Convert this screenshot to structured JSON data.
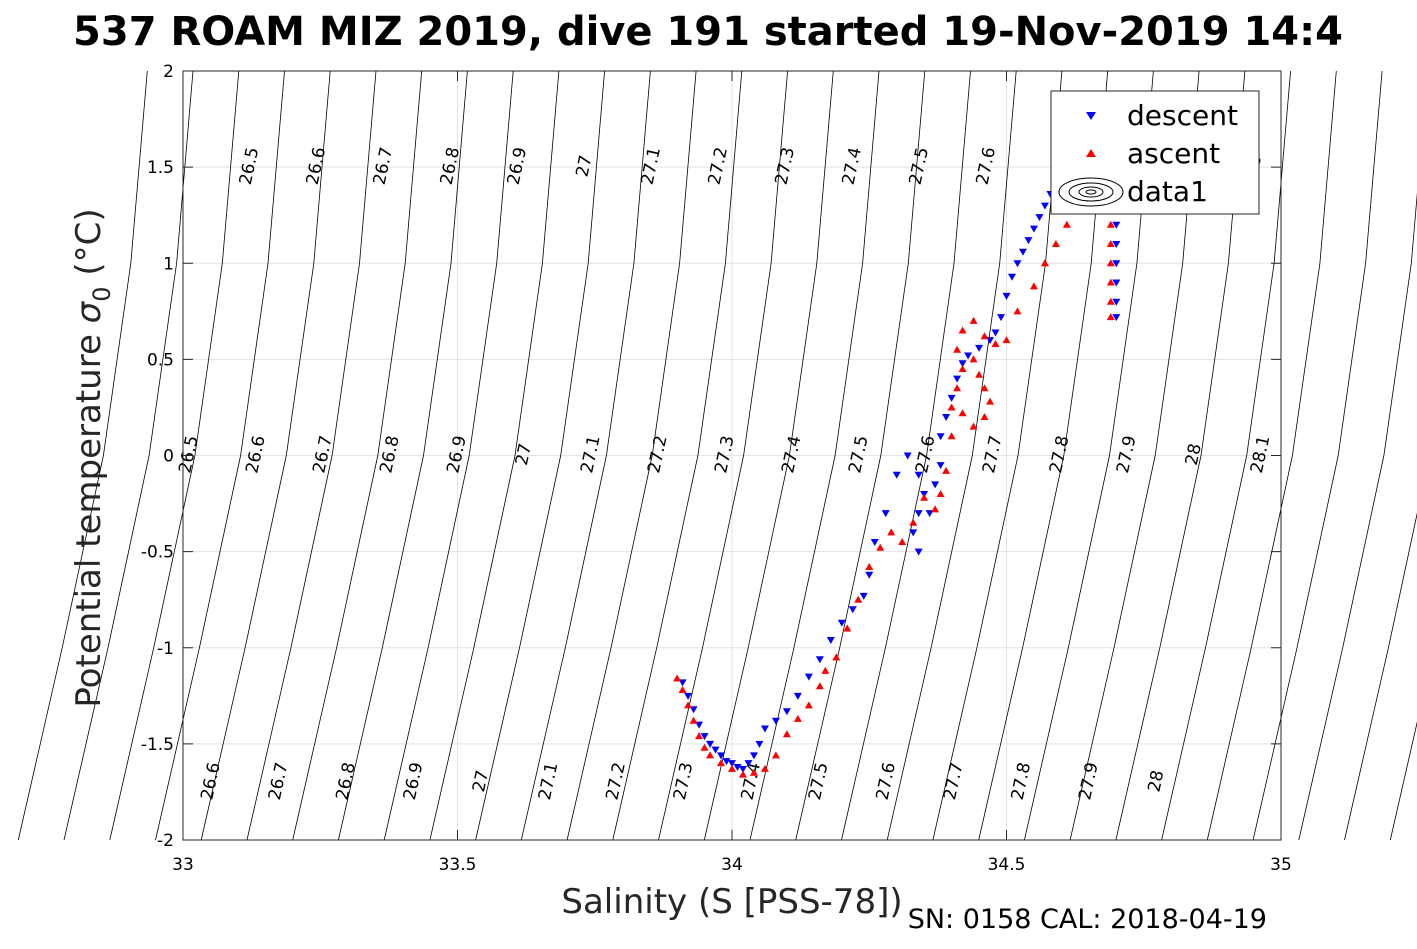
{
  "chart_data": {
    "type": "scatter",
    "title": "537 ROAM MIZ 2019, dive 191 started 19-Nov-2019 14:4",
    "xlabel": "Salinity (S [PSS-78])",
    "ylabel": "Potential temperature",
    "ylabel_symbol": "σ",
    "ylabel_sub": "0",
    "ylabel_unit": "(°C)",
    "xlim": [
      33,
      35
    ],
    "ylim": [
      -2,
      2
    ],
    "x_ticks": [
      "33",
      "33.5",
      "34",
      "34.5",
      "35"
    ],
    "y_ticks": [
      "-2",
      "-1.5",
      "-1",
      "-0.5",
      "0",
      "0.5",
      "1",
      "1.5",
      "2"
    ],
    "grid": true,
    "legend_position": "top-right",
    "legend": [
      "descent",
      "ascent",
      "data1"
    ],
    "footer_text": "SN: 0158  CAL: 2018-04-19",
    "isopycnal_labels": {
      "row_at_1_5": [
        "26.5",
        "26.6",
        "26.7",
        "26.8",
        "26.9",
        "27",
        "27.1",
        "27.2",
        "27.3",
        "27.4",
        "27.5",
        "27.6",
        "28"
      ],
      "row_at_0": [
        "26.5",
        "26.6",
        "26.7",
        "26.8",
        "26.9",
        "27",
        "27.1",
        "27.2",
        "27.3",
        "27.4",
        "27.5",
        "27.6",
        "27.7",
        "27.8",
        "27.9",
        "28",
        "28.1"
      ],
      "row_at_minus_1_7": [
        "26.6",
        "26.7",
        "26.8",
        "26.9",
        "27",
        "27.1",
        "27.2",
        "27.3",
        "27.4",
        "27.5",
        "27.6",
        "27.7",
        "27.8",
        "27.9",
        "28"
      ]
    },
    "series": [
      {
        "name": "descent",
        "color": "#0000ff",
        "marker": "triangle-down",
        "points": [
          [
            33.91,
            -1.18
          ],
          [
            33.92,
            -1.25
          ],
          [
            33.93,
            -1.32
          ],
          [
            33.94,
            -1.4
          ],
          [
            33.95,
            -1.46
          ],
          [
            33.96,
            -1.5
          ],
          [
            33.97,
            -1.53
          ],
          [
            33.98,
            -1.56
          ],
          [
            33.99,
            -1.59
          ],
          [
            34.0,
            -1.6
          ],
          [
            34.01,
            -1.62
          ],
          [
            34.02,
            -1.63
          ],
          [
            34.03,
            -1.6
          ],
          [
            34.04,
            -1.56
          ],
          [
            34.05,
            -1.5
          ],
          [
            34.06,
            -1.42
          ],
          [
            34.08,
            -1.38
          ],
          [
            34.1,
            -1.33
          ],
          [
            34.12,
            -1.25
          ],
          [
            34.14,
            -1.15
          ],
          [
            34.16,
            -1.06
          ],
          [
            34.18,
            -0.96
          ],
          [
            34.2,
            -0.87
          ],
          [
            34.22,
            -0.8
          ],
          [
            34.24,
            -0.73
          ],
          [
            34.25,
            -0.62
          ],
          [
            34.26,
            -0.45
          ],
          [
            34.28,
            -0.3
          ],
          [
            34.3,
            -0.1
          ],
          [
            34.32,
            0.0
          ],
          [
            34.34,
            -0.1
          ],
          [
            34.35,
            -0.2
          ],
          [
            34.34,
            -0.3
          ],
          [
            34.33,
            -0.4
          ],
          [
            34.34,
            -0.5
          ],
          [
            34.36,
            -0.3
          ],
          [
            34.37,
            -0.15
          ],
          [
            34.38,
            -0.05
          ],
          [
            34.38,
            0.1
          ],
          [
            34.39,
            0.2
          ],
          [
            34.4,
            0.3
          ],
          [
            34.41,
            0.4
          ],
          [
            34.42,
            0.48
          ],
          [
            34.43,
            0.52
          ],
          [
            34.45,
            0.56
          ],
          [
            34.47,
            0.6
          ],
          [
            34.48,
            0.64
          ],
          [
            34.49,
            0.72
          ],
          [
            34.5,
            0.83
          ],
          [
            34.51,
            0.93
          ],
          [
            34.52,
            1.0
          ],
          [
            34.53,
            1.06
          ],
          [
            34.54,
            1.12
          ],
          [
            34.55,
            1.18
          ],
          [
            34.56,
            1.24
          ],
          [
            34.57,
            1.3
          ],
          [
            34.58,
            1.36
          ],
          [
            34.59,
            1.42
          ],
          [
            34.6,
            1.45
          ],
          [
            34.61,
            1.47
          ],
          [
            34.7,
            1.3
          ],
          [
            34.7,
            1.2
          ],
          [
            34.7,
            1.1
          ],
          [
            34.7,
            1.0
          ],
          [
            34.7,
            0.9
          ],
          [
            34.7,
            0.8
          ],
          [
            34.7,
            0.72
          ]
        ]
      },
      {
        "name": "ascent",
        "color": "#ff0000",
        "marker": "triangle-up",
        "points": [
          [
            33.9,
            -1.16
          ],
          [
            33.91,
            -1.22
          ],
          [
            33.92,
            -1.3
          ],
          [
            33.93,
            -1.38
          ],
          [
            33.94,
            -1.46
          ],
          [
            33.95,
            -1.52
          ],
          [
            33.96,
            -1.56
          ],
          [
            33.98,
            -1.6
          ],
          [
            34.0,
            -1.63
          ],
          [
            34.02,
            -1.66
          ],
          [
            34.04,
            -1.65
          ],
          [
            34.06,
            -1.63
          ],
          [
            34.08,
            -1.56
          ],
          [
            34.1,
            -1.45
          ],
          [
            34.12,
            -1.37
          ],
          [
            34.14,
            -1.3
          ],
          [
            34.16,
            -1.2
          ],
          [
            34.17,
            -1.12
          ],
          [
            34.19,
            -1.05
          ],
          [
            34.21,
            -0.9
          ],
          [
            34.23,
            -0.75
          ],
          [
            34.25,
            -0.58
          ],
          [
            34.27,
            -0.48
          ],
          [
            34.29,
            -0.4
          ],
          [
            34.31,
            -0.45
          ],
          [
            34.33,
            -0.35
          ],
          [
            34.35,
            -0.22
          ],
          [
            34.37,
            -0.28
          ],
          [
            34.38,
            -0.2
          ],
          [
            34.39,
            -0.08
          ],
          [
            34.4,
            0.1
          ],
          [
            34.4,
            0.25
          ],
          [
            34.41,
            0.35
          ],
          [
            34.42,
            0.45
          ],
          [
            34.44,
            0.5
          ],
          [
            34.45,
            0.42
          ],
          [
            34.46,
            0.35
          ],
          [
            34.47,
            0.28
          ],
          [
            34.46,
            0.2
          ],
          [
            34.44,
            0.15
          ],
          [
            34.42,
            0.22
          ],
          [
            34.41,
            0.55
          ],
          [
            34.42,
            0.65
          ],
          [
            34.44,
            0.7
          ],
          [
            34.46,
            0.62
          ],
          [
            34.48,
            0.58
          ],
          [
            34.5,
            0.6
          ],
          [
            34.52,
            0.75
          ],
          [
            34.55,
            0.88
          ],
          [
            34.57,
            1.0
          ],
          [
            34.59,
            1.1
          ],
          [
            34.61,
            1.2
          ],
          [
            34.63,
            1.3
          ],
          [
            34.66,
            1.45
          ],
          [
            34.68,
            1.5
          ],
          [
            34.69,
            1.4
          ],
          [
            34.69,
            1.3
          ],
          [
            34.69,
            1.2
          ],
          [
            34.69,
            1.1
          ],
          [
            34.69,
            1.0
          ],
          [
            34.69,
            0.9
          ],
          [
            34.69,
            0.8
          ],
          [
            34.69,
            0.72
          ]
        ]
      }
    ]
  }
}
